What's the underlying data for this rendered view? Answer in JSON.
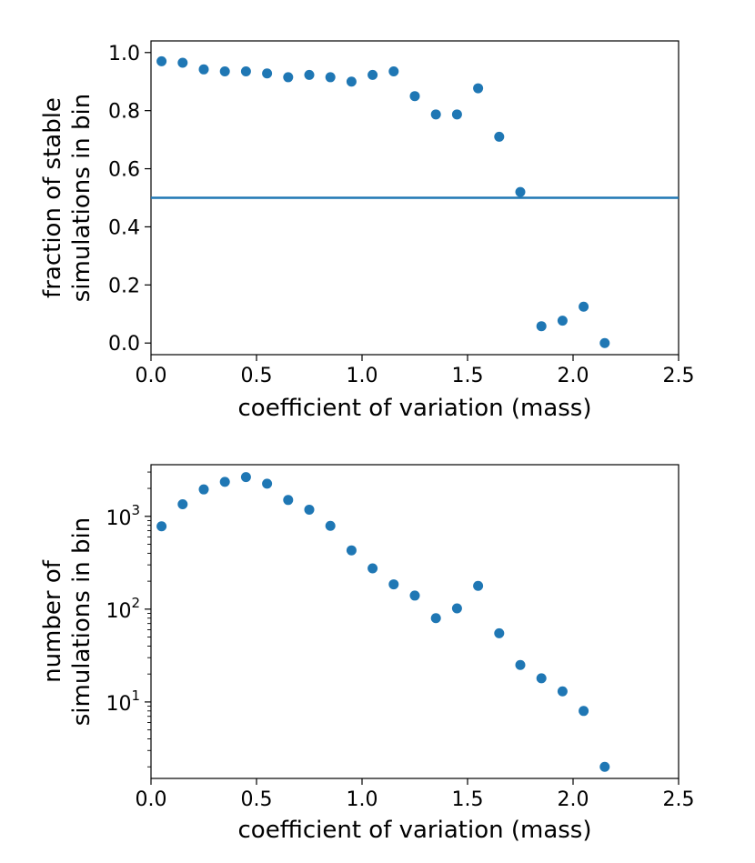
{
  "chart_data": [
    {
      "type": "scatter",
      "xlabel": "coefficient of variation (mass)",
      "ylabel_lines": [
        "fraction of stable",
        "simulations in bin"
      ],
      "xlim": [
        0.0,
        2.5
      ],
      "ylim": [
        -0.04,
        1.04
      ],
      "xticks": [
        0.0,
        0.5,
        1.0,
        1.5,
        2.0,
        2.5
      ],
      "xtick_labels": [
        "0.0",
        "0.5",
        "1.0",
        "1.5",
        "2.0",
        "2.5"
      ],
      "yticks": [
        0.0,
        0.2,
        0.4,
        0.6,
        0.8,
        1.0
      ],
      "ytick_labels": [
        "0.0",
        "0.2",
        "0.4",
        "0.6",
        "0.8",
        "1.0"
      ],
      "color": "#1f77b4",
      "hline": 0.5,
      "x": [
        0.05,
        0.15,
        0.25,
        0.35,
        0.45,
        0.55,
        0.65,
        0.75,
        0.85,
        0.95,
        1.05,
        1.15,
        1.25,
        1.35,
        1.45,
        1.55,
        1.65,
        1.75,
        1.85,
        1.95,
        2.05,
        2.15
      ],
      "y": [
        0.97,
        0.965,
        0.942,
        0.935,
        0.935,
        0.928,
        0.915,
        0.923,
        0.915,
        0.9,
        0.923,
        0.935,
        0.85,
        0.787,
        0.787,
        0.877,
        0.71,
        0.52,
        0.058,
        0.077,
        0.125,
        0.0
      ]
    },
    {
      "type": "scatter",
      "yscale": "log",
      "xlabel": "coefficient of variation (mass)",
      "ylabel_lines": [
        "number of",
        "simulations in bin"
      ],
      "xlim": [
        0.0,
        2.5
      ],
      "ylim": [
        1.5,
        3600
      ],
      "xticks": [
        0.0,
        0.5,
        1.0,
        1.5,
        2.0,
        2.5
      ],
      "xtick_labels": [
        "0.0",
        "0.5",
        "1.0",
        "1.5",
        "2.0",
        "2.5"
      ],
      "yticks": [
        10,
        100,
        1000
      ],
      "ytick_bases": [
        "10",
        "10",
        "10"
      ],
      "ytick_exps": [
        "1",
        "2",
        "3"
      ],
      "color": "#1f77b4",
      "x": [
        0.05,
        0.15,
        0.25,
        0.35,
        0.45,
        0.55,
        0.65,
        0.75,
        0.85,
        0.95,
        1.05,
        1.15,
        1.25,
        1.35,
        1.45,
        1.55,
        1.65,
        1.75,
        1.85,
        1.95,
        2.05,
        2.15
      ],
      "y": [
        780,
        1350,
        1950,
        2350,
        2650,
        2250,
        1500,
        1180,
        790,
        430,
        275,
        185,
        140,
        80,
        102,
        178,
        55,
        25,
        18,
        13,
        8,
        2
      ]
    }
  ]
}
